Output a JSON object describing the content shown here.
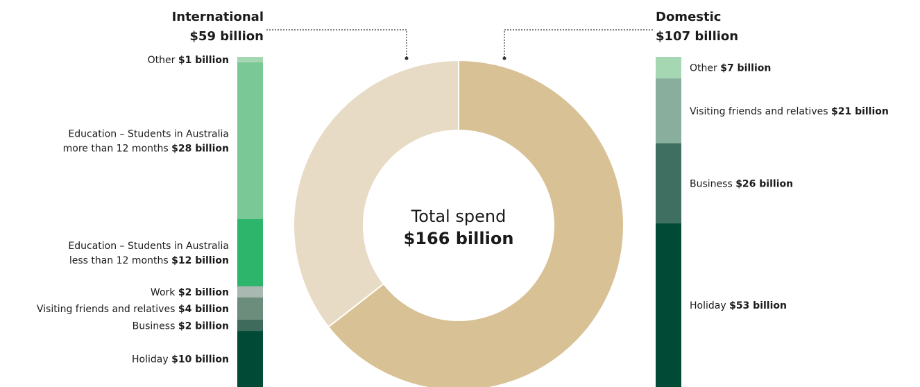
{
  "chart_data": {
    "type": "donut",
    "center": {
      "title": "Total spend",
      "value": "$166 billion"
    },
    "slices": [
      {
        "name": "International",
        "value": 59,
        "color": "#e8dbc5"
      },
      {
        "name": "Domestic",
        "value": 107,
        "color": "#d8c194"
      }
    ],
    "breakdowns": {
      "international": {
        "title": "International",
        "total_label": "$59 billion",
        "segments": [
          {
            "label": "Other",
            "value_label": "$1 billion",
            "value": 1,
            "color": "#a5d7b3"
          },
          {
            "label_lines": [
              "Education – Students in Australia",
              "more than 12 months"
            ],
            "value_label": "$28 billion",
            "value": 28,
            "color": "#7ac896"
          },
          {
            "label_lines": [
              "Education – Students in Australia",
              "less than 12 months"
            ],
            "value_label": "$12 billion",
            "value": 12,
            "color": "#2db56c"
          },
          {
            "label": "Work",
            "value_label": "$2 billion",
            "value": 2,
            "color": "#aab8b2"
          },
          {
            "label": "Visiting friends and relatives",
            "value_label": "$4 billion",
            "value": 4,
            "color": "#6c8c7c"
          },
          {
            "label": "Business",
            "value_label": "$2 billion",
            "value": 2,
            "color": "#3e6b5c"
          },
          {
            "label": "Holiday",
            "value_label": "$10 billion",
            "value": 10,
            "color": "#004a36"
          }
        ]
      },
      "domestic": {
        "title": "Domestic",
        "total_label": "$107 billion",
        "segments": [
          {
            "label": "Other",
            "value_label": "$7 billion",
            "value": 7,
            "color": "#a5d7b3"
          },
          {
            "label": "Visiting friends and relatives",
            "value_label": "$21 billion",
            "value": 21,
            "color": "#8aae9e"
          },
          {
            "label": "Business",
            "value_label": "$26 billion",
            "value": 26,
            "color": "#3f6f60"
          },
          {
            "label": "Holiday",
            "value_label": "$53 billion",
            "value": 53,
            "color": "#004a36"
          }
        ]
      }
    }
  }
}
